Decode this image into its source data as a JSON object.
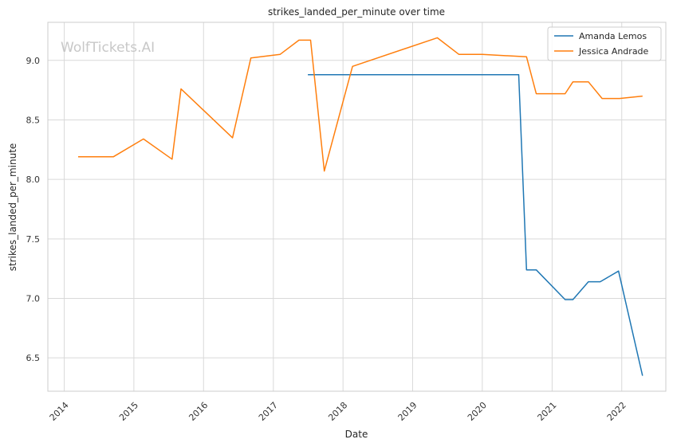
{
  "chart_data": {
    "type": "line",
    "title": "strikes_landed_per_minute over time",
    "xlabel": "Date",
    "ylabel": "strikes_landed_per_minute",
    "watermark": "WolfTickets.AI",
    "x_ticks": [
      "2014",
      "2015",
      "2016",
      "2017",
      "2018",
      "2019",
      "2020",
      "2021",
      "2022"
    ],
    "y_ticks": [
      "6.5",
      "7.0",
      "7.5",
      "8.0",
      "8.5",
      "9.0"
    ],
    "ylim": [
      6.22,
      9.32
    ],
    "xlim": [
      "2013-10-07",
      "2022-08-20"
    ],
    "grid": true,
    "legend_position": "top-right",
    "series": [
      {
        "name": "Amanda Lemos",
        "color": "#1f77b4",
        "points": [
          [
            "2017-07-01",
            8.88
          ],
          [
            "2020-07-10",
            8.88
          ],
          [
            "2020-08-20",
            7.24
          ],
          [
            "2020-10-10",
            7.24
          ],
          [
            "2021-03-10",
            6.99
          ],
          [
            "2021-04-20",
            6.99
          ],
          [
            "2021-07-10",
            7.14
          ],
          [
            "2021-09-10",
            7.14
          ],
          [
            "2021-12-15",
            7.23
          ],
          [
            "2022-04-20",
            6.35
          ]
        ]
      },
      {
        "name": "Jessica Andrade",
        "color": "#ff7f0e",
        "points": [
          [
            "2014-03-15",
            8.19
          ],
          [
            "2014-09-15",
            8.19
          ],
          [
            "2015-02-20",
            8.34
          ],
          [
            "2015-07-20",
            8.17
          ],
          [
            "2015-09-05",
            8.76
          ],
          [
            "2016-06-01",
            8.35
          ],
          [
            "2016-09-05",
            9.02
          ],
          [
            "2017-02-05",
            9.05
          ],
          [
            "2017-05-15",
            9.17
          ],
          [
            "2017-07-15",
            9.17
          ],
          [
            "2017-09-25",
            8.07
          ],
          [
            "2018-02-20",
            8.95
          ],
          [
            "2019-05-10",
            9.19
          ],
          [
            "2019-09-01",
            9.05
          ],
          [
            "2020-01-01",
            9.05
          ],
          [
            "2020-08-20",
            9.03
          ],
          [
            "2020-10-10",
            8.72
          ],
          [
            "2021-03-10",
            8.72
          ],
          [
            "2021-04-20",
            8.82
          ],
          [
            "2021-07-10",
            8.82
          ],
          [
            "2021-09-20",
            8.68
          ],
          [
            "2021-12-20",
            8.68
          ],
          [
            "2022-04-20",
            8.7
          ]
        ]
      }
    ]
  }
}
